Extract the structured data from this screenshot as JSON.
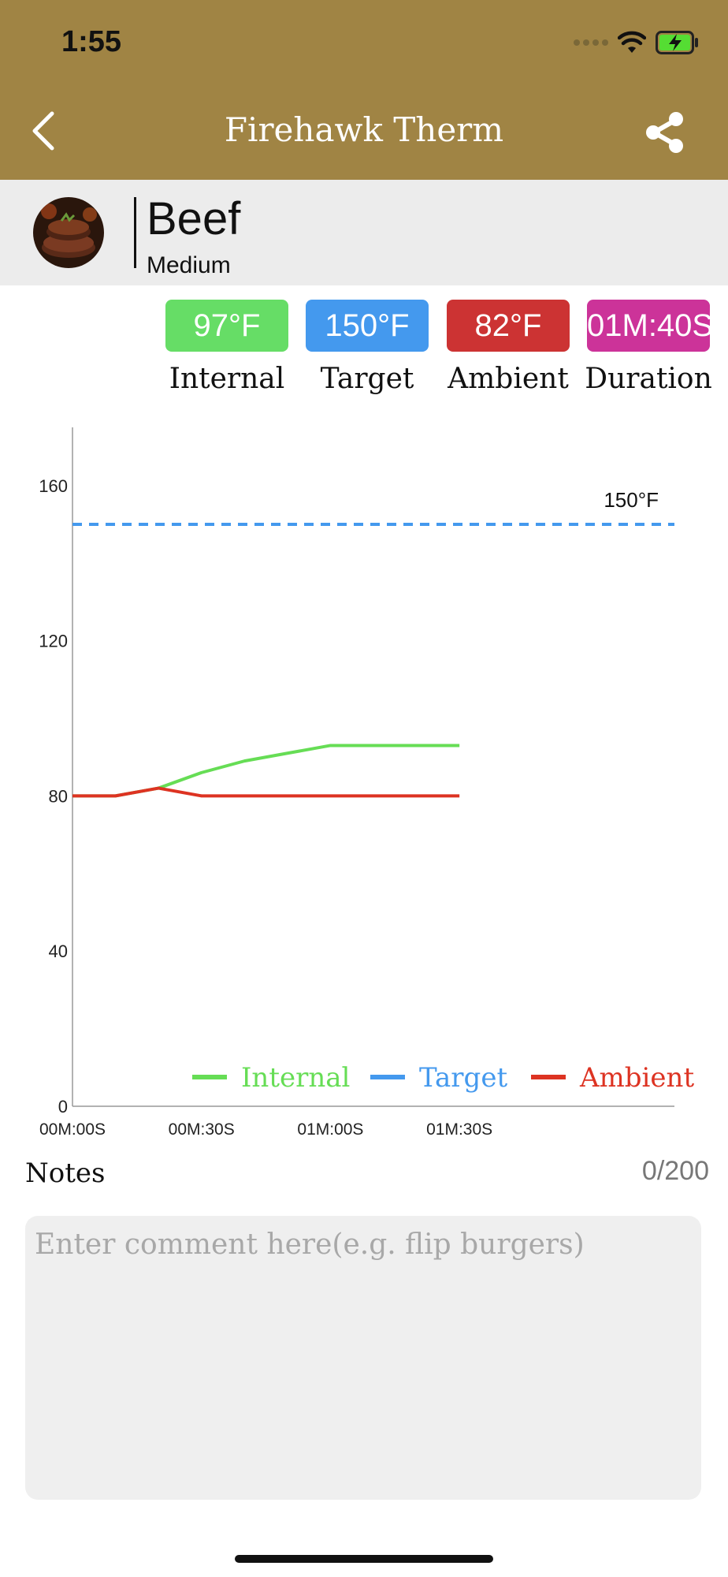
{
  "status": {
    "time": "1:55"
  },
  "header": {
    "title": "Firehawk Therm"
  },
  "food": {
    "name": "Beef",
    "doneness": "Medium"
  },
  "stats": [
    {
      "value": "97°F",
      "label": "Internal",
      "color": "#66dd66"
    },
    {
      "value": "150°F",
      "label": "Target",
      "color": "#4499ee"
    },
    {
      "value": "82°F",
      "label": "Ambient",
      "color": "#cc3333"
    },
    {
      "value": "01M:40S",
      "label": "Duration",
      "color": "#cc3399"
    }
  ],
  "chart_data": {
    "type": "line",
    "y_ticks": [
      0,
      40,
      80,
      120,
      160
    ],
    "ylim": [
      0,
      175
    ],
    "x_ticks": [
      "00M:00S",
      "00M:30S",
      "01M:00S",
      "01M:30S"
    ],
    "xlim": [
      0,
      140
    ],
    "target_label": "150°F",
    "grid": false,
    "legend_position": "bottom-right",
    "series": [
      {
        "name": "Internal",
        "color": "#66dd55",
        "x": [
          0,
          10,
          20,
          30,
          40,
          50,
          60,
          70,
          80,
          90
        ],
        "y": [
          80,
          80,
          82,
          86,
          89,
          91,
          93,
          93,
          93,
          93
        ]
      },
      {
        "name": "Target",
        "color": "#4499ee",
        "dashed": true,
        "y": 150
      },
      {
        "name": "Ambient",
        "color": "#dd3322",
        "x": [
          0,
          10,
          20,
          30,
          40,
          50,
          60,
          70,
          80,
          90
        ],
        "y": [
          80,
          80,
          82,
          80,
          80,
          80,
          80,
          80,
          80,
          80
        ]
      }
    ]
  },
  "notes": {
    "title": "Notes",
    "count": "0/200",
    "placeholder": "Enter comment here(e.g. flip burgers)",
    "value": ""
  }
}
